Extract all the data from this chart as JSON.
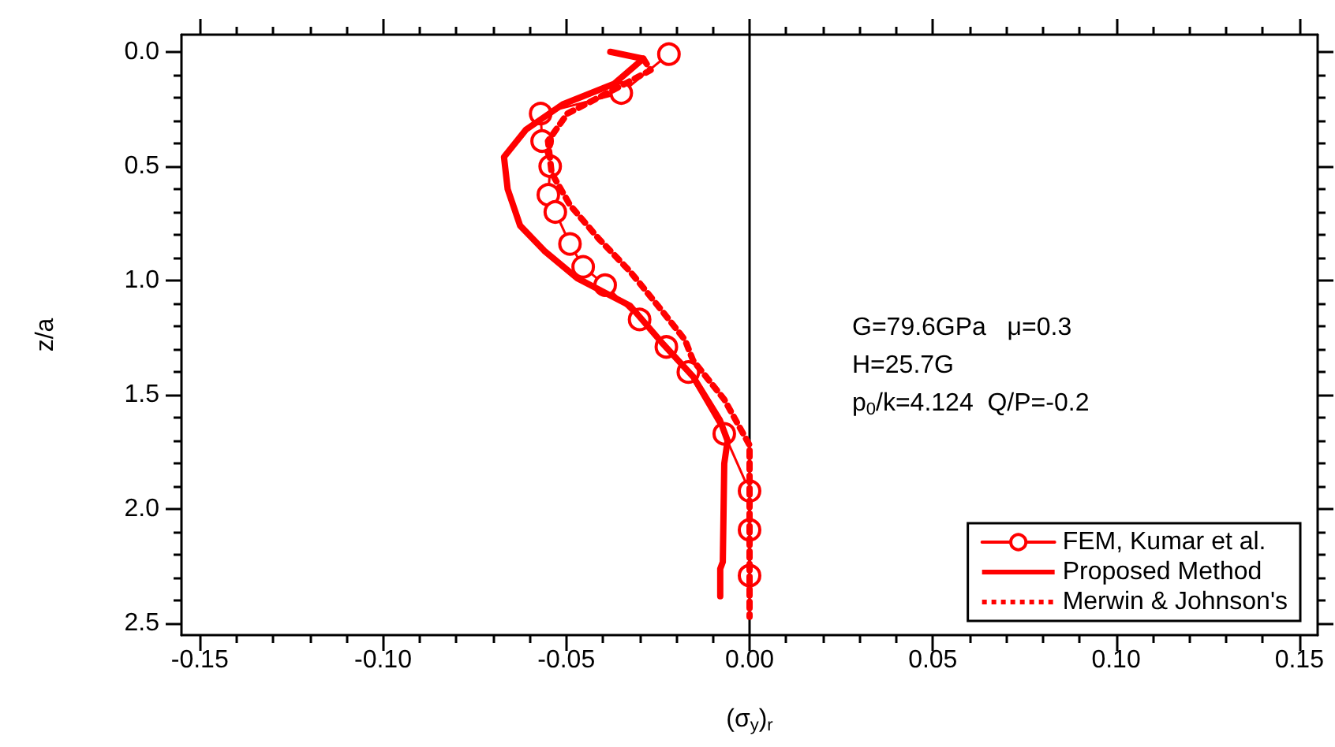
{
  "chart_data": {
    "type": "line",
    "xlabel": "(σ$_{y}$)$_{r}$",
    "ylabel": "z/a",
    "xlim": [
      -0.155,
      0.155
    ],
    "ylim": [
      2.55,
      -0.075
    ],
    "xticks": [
      {
        "value": -0.15,
        "label": "-0.15"
      },
      {
        "value": -0.1,
        "label": "-0.10"
      },
      {
        "value": -0.05,
        "label": "-0.05"
      },
      {
        "value": 0,
        "label": "0.00"
      },
      {
        "value": 0.05,
        "label": "0.05"
      },
      {
        "value": 0.1,
        "label": "0.10"
      },
      {
        "value": 0.15,
        "label": "0.15"
      }
    ],
    "yticks": [
      {
        "value": 0,
        "label": "0.0"
      },
      {
        "value": 0.5,
        "label": "0.5"
      },
      {
        "value": 1,
        "label": "1.0"
      },
      {
        "value": 1.5,
        "label": "1.5"
      },
      {
        "value": 2,
        "label": "2.0"
      },
      {
        "value": 2.5,
        "label": "2.5"
      }
    ],
    "grid": false,
    "legend": "bottom right",
    "ref_lines": [
      {
        "axis": "x",
        "value": 0,
        "color": "#000000"
      }
    ],
    "annotations": [
      "G=79.6GPa   μ=0.3",
      "H=25.7G",
      "p$_{0}$/k=4.124  Q/P=-0.2"
    ],
    "series": [
      {
        "name": "FEM, Kumar et al.",
        "color": "#ff0000",
        "marker": "circle",
        "line_style": "solid",
        "x": [
          -0.022,
          -0.035,
          -0.057,
          -0.0566,
          -0.0544,
          -0.0549,
          -0.053,
          -0.049,
          -0.0454,
          -0.0394,
          -0.03,
          -0.0227,
          -0.0167,
          -0.0069,
          0,
          0,
          0
        ],
        "values": [
          0.01,
          0.18,
          0.27,
          0.39,
          0.5,
          0.625,
          0.7,
          0.84,
          0.94,
          1.02,
          1.17,
          1.29,
          1.4,
          1.67,
          1.92,
          2.09,
          2.29
        ]
      },
      {
        "name": "Proposed Method",
        "color": "#ff0000",
        "marker": "none",
        "line_style": "solid",
        "x": [
          -0.038,
          -0.029,
          -0.037,
          -0.051,
          -0.061,
          -0.067,
          -0.066,
          -0.0626,
          -0.056,
          -0.047,
          -0.0326,
          -0.024,
          -0.0154,
          -0.0081,
          -0.006,
          -0.0069,
          -0.0073,
          -0.008,
          -0.008
        ],
        "values": [
          0.0,
          0.03,
          0.14,
          0.23,
          0.34,
          0.46,
          0.6,
          0.76,
          0.87,
          0.99,
          1.11,
          1.27,
          1.42,
          1.61,
          1.7,
          1.8,
          2.23,
          2.26,
          2.38
        ]
      },
      {
        "name": "Merwin & Johnson's",
        "color": "#ff0000",
        "marker": "none",
        "line_style": "dotted",
        "x": [
          -0.029,
          -0.027,
          -0.037,
          -0.0497,
          -0.055,
          -0.054,
          -0.049,
          -0.041,
          -0.0326,
          -0.024,
          -0.0176,
          -0.0154,
          -0.0069,
          0,
          0
        ],
        "values": [
          0.03,
          0.08,
          0.165,
          0.27,
          0.39,
          0.53,
          0.67,
          0.82,
          0.96,
          1.13,
          1.26,
          1.35,
          1.52,
          1.72,
          2.47
        ]
      }
    ]
  }
}
